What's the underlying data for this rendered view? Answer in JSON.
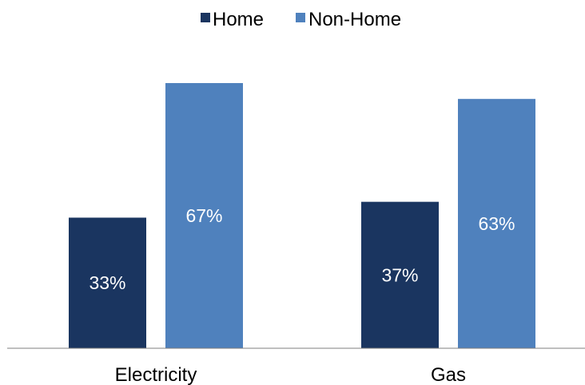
{
  "chart_data": {
    "type": "bar",
    "categories": [
      "Electricity",
      "Gas"
    ],
    "series": [
      {
        "name": "Home",
        "values": [
          33,
          37
        ],
        "labels": [
          "33%",
          "37%"
        ],
        "color": "#1a3560"
      },
      {
        "name": "Non-Home",
        "values": [
          67,
          63
        ],
        "labels": [
          "67%",
          "63%"
        ],
        "color": "#4f81bd"
      }
    ],
    "title": "",
    "xlabel": "",
    "ylabel": "",
    "ylim": [
      0,
      67
    ],
    "grid": false,
    "legend_position": "top-center",
    "label_color": "#ffffff",
    "axis_color": "#7f7f7f",
    "text_color": "#000000"
  }
}
